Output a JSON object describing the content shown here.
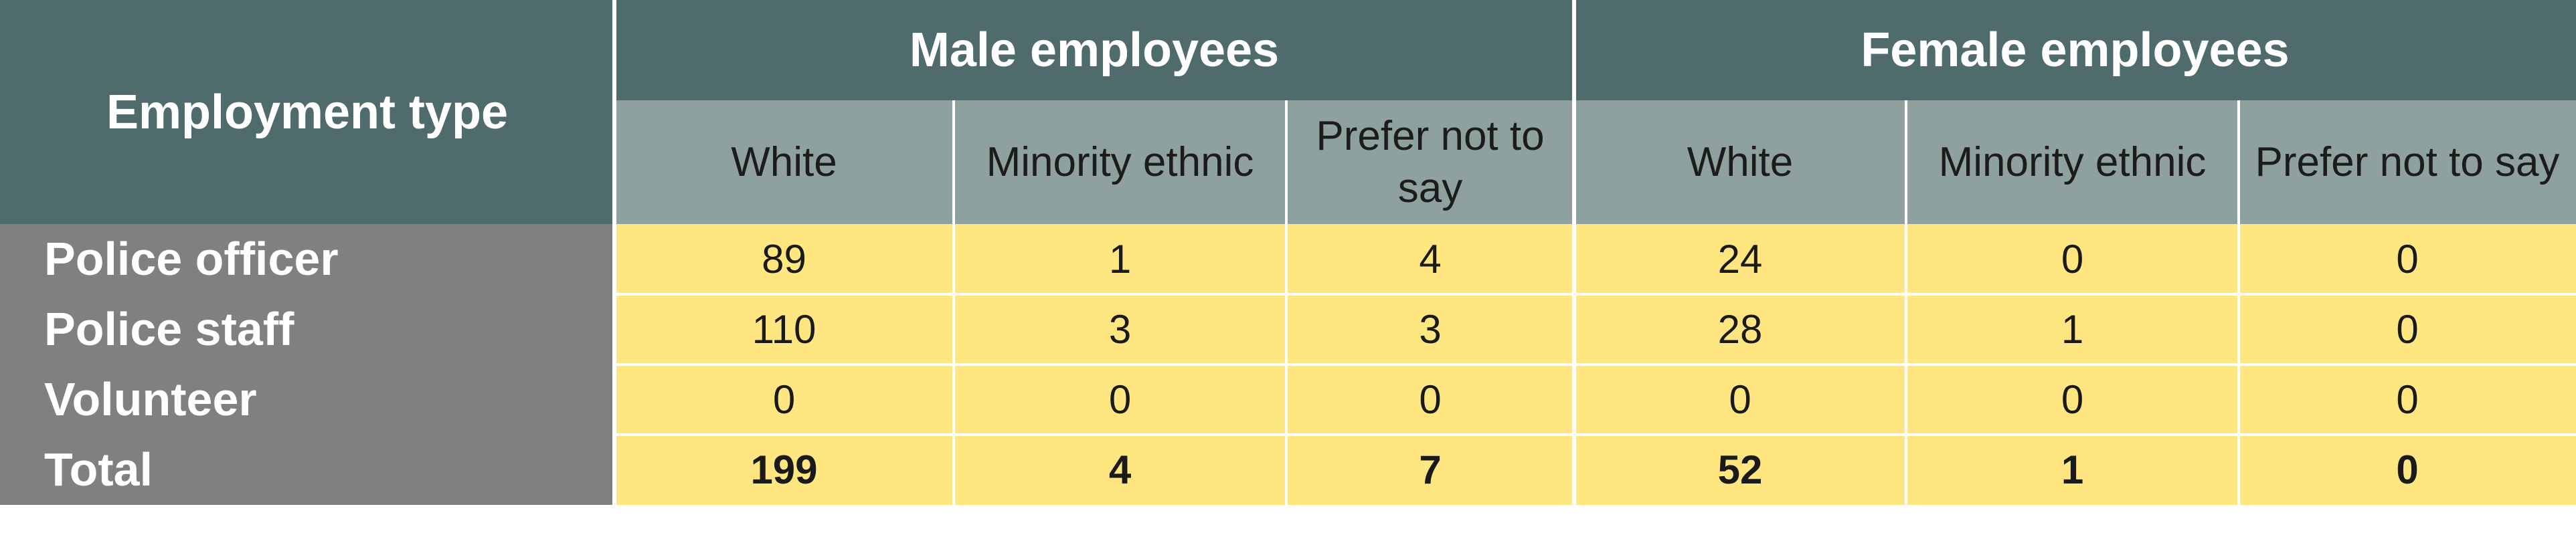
{
  "chart_data": {
    "type": "table",
    "corner_header": "Employment type",
    "groups": [
      "Male employees",
      "Female employees"
    ],
    "subheaders": [
      "White",
      "Minority ethnic",
      "Prefer not to say",
      "White",
      "Minority ethnic",
      "Prefer not to say"
    ],
    "rows": [
      {
        "label": "Police officer",
        "values": [
          89,
          1,
          4,
          24,
          0,
          0
        ],
        "bold": false
      },
      {
        "label": "Police staff",
        "values": [
          110,
          3,
          3,
          28,
          1,
          0
        ],
        "bold": false
      },
      {
        "label": "Volunteer",
        "values": [
          0,
          0,
          0,
          0,
          0,
          0
        ],
        "bold": false
      },
      {
        "label": "Total",
        "values": [
          199,
          4,
          7,
          52,
          1,
          0
        ],
        "bold": true
      }
    ],
    "colors": {
      "header_dark": "#4f6b6b",
      "header_light": "#8fa19f",
      "row_label_bg": "#808080",
      "value_bg": "#ffe680"
    }
  }
}
